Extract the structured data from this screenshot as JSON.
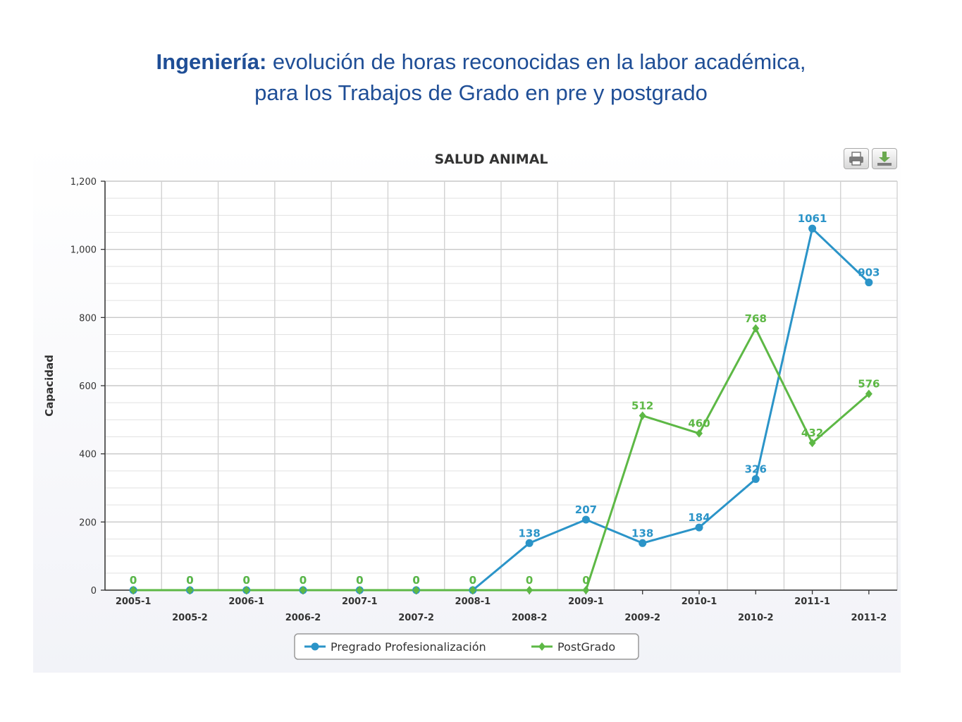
{
  "slide": {
    "title_bold": "Ingeniería:",
    "title_rest": " evolución de horas reconocidas en la labor académica,",
    "title_line2": "para los Trabajos de Grado en pre y postgrado"
  },
  "toolbar": {
    "print_icon": "printer-icon",
    "download_icon": "download-icon"
  },
  "chart_data": {
    "type": "line",
    "title": "SALUD ANIMAL",
    "xlabel": "",
    "ylabel": "Capacidad",
    "ylim": [
      0,
      1200
    ],
    "yticks": [
      0,
      200,
      400,
      600,
      800,
      1000,
      1200
    ],
    "ytick_labels": [
      "0",
      "200",
      "400",
      "600",
      "800",
      "1,000",
      "1,200"
    ],
    "categories": [
      "2005-1",
      "2005-2",
      "2006-1",
      "2006-2",
      "2007-1",
      "2007-2",
      "2008-1",
      "2008-2",
      "2009-1",
      "2009-2",
      "2010-1",
      "2010-2",
      "2011-1",
      "2011-2"
    ],
    "grid": true,
    "legend_position": "bottom-center",
    "series": [
      {
        "name": "Pregrado Profesionalización",
        "color": "#2b94c8",
        "marker": "circle",
        "values": [
          0,
          0,
          0,
          0,
          0,
          0,
          0,
          138,
          207,
          138,
          184,
          326,
          1061,
          903
        ],
        "labels": [
          "0",
          "0",
          "0",
          "0",
          "0",
          "0",
          "0",
          "138",
          "207",
          "138",
          "184",
          "326",
          "1061",
          "903"
        ]
      },
      {
        "name": "PostGrado",
        "color": "#5db845",
        "marker": "diamond",
        "values": [
          0,
          0,
          0,
          0,
          0,
          0,
          0,
          0,
          0,
          512,
          460,
          768,
          432,
          576
        ],
        "labels": [
          "0",
          "0",
          "0",
          "0",
          "0",
          "0",
          "0",
          "0",
          "0",
          "512",
          "460",
          "768",
          "432",
          "576"
        ]
      }
    ]
  }
}
